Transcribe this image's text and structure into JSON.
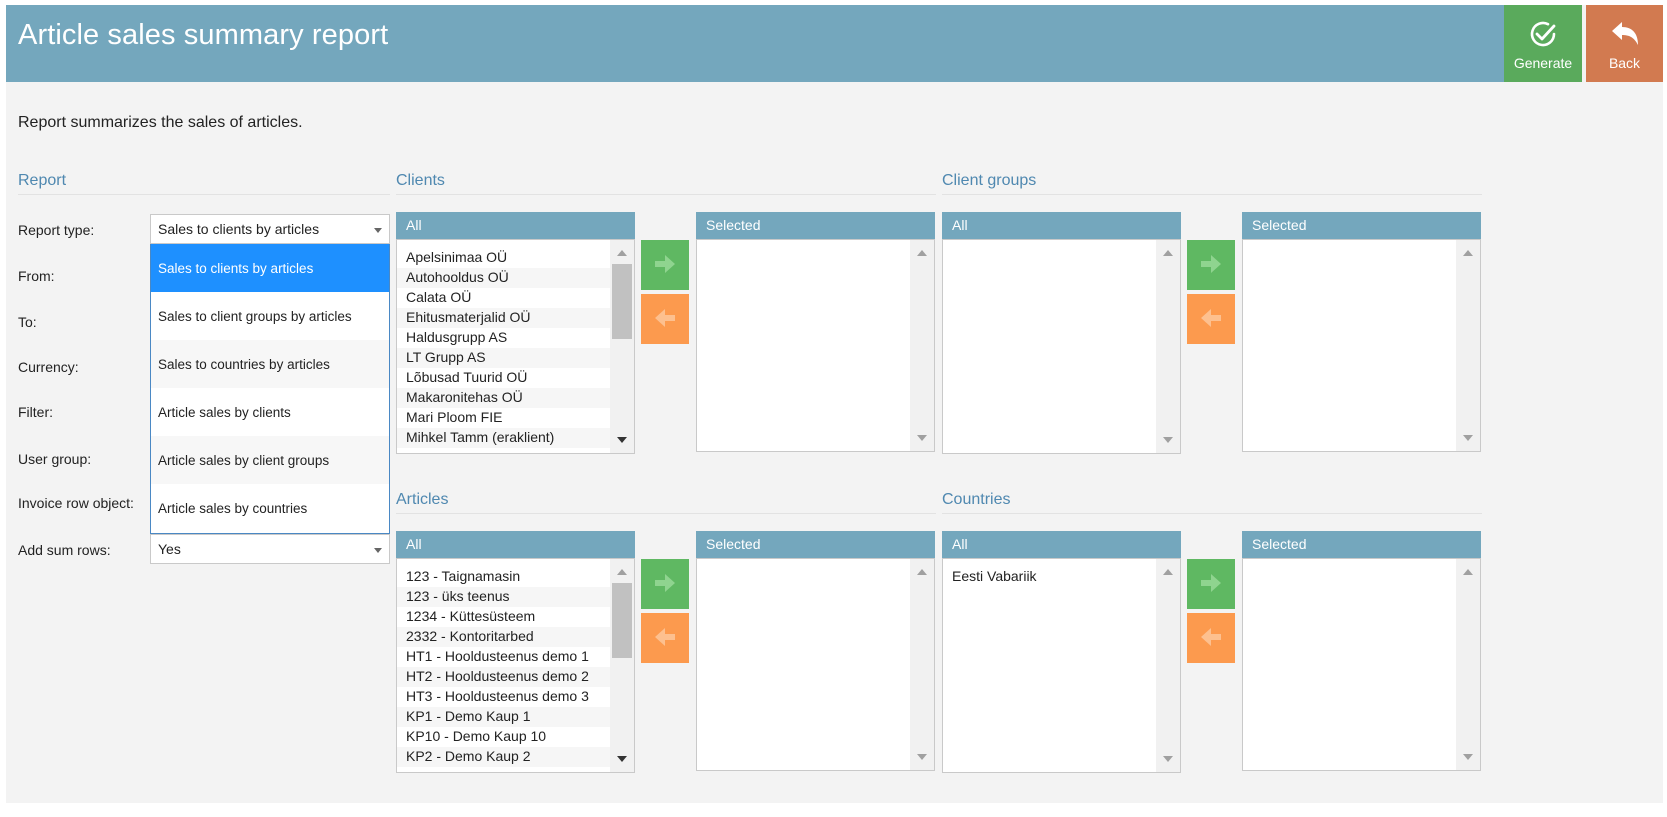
{
  "header": {
    "title": "Article sales summary report",
    "generate_label": "Generate",
    "back_label": "Back"
  },
  "description": "Report summarizes the sales of articles.",
  "colors": {
    "header": "#74a7bd",
    "generate": "#5aaa5c",
    "back": "#d27a50",
    "move_right": "#5fb862",
    "move_left": "#fc9a4e",
    "section_title": "#4f88b0",
    "dropdown_active": "#1e90ff"
  },
  "report": {
    "section_title": "Report",
    "labels": {
      "report_type": "Report type:",
      "from": "From:",
      "to": "To:",
      "currency": "Currency:",
      "filter": "Filter:",
      "user_group": "User group:",
      "invoice_row_object": "Invoice row object:",
      "add_sum_rows": "Add sum rows:"
    },
    "report_type_value": "Sales to clients by articles",
    "add_sum_rows_value": "Yes",
    "report_type_options": [
      "Sales to clients by articles",
      "Sales to client groups by articles",
      "Sales to countries by articles",
      "Article sales by clients",
      "Article sales by client groups",
      "Article sales by countries"
    ]
  },
  "clients": {
    "section_title": "Clients",
    "all_label": "All",
    "selected_label": "Selected",
    "items": [
      "Apelsinimaa OÜ",
      "Autohooldus OÜ",
      "Calata OÜ",
      "Ehitusmaterjalid OÜ",
      "Haldusgrupp AS",
      "LT Grupp AS",
      "Lõbusad Tuurid OÜ",
      "Makaronitehas OÜ",
      "Mari Ploom FIE",
      "Mihkel Tamm (eraklient)"
    ],
    "selected_items": []
  },
  "client_groups": {
    "section_title": "Client groups",
    "all_label": "All",
    "selected_label": "Selected",
    "items": [],
    "selected_items": []
  },
  "articles": {
    "section_title": "Articles",
    "all_label": "All",
    "selected_label": "Selected",
    "items": [
      "123 - Taignamasin",
      "123 - üks teenus",
      "1234 - Küttesüsteem",
      "2332 - Kontoritarbed",
      "HT1 - Hooldusteenus demo 1",
      "HT2 - Hooldusteenus demo 2",
      "HT3 - Hooldusteenus demo 3",
      "KP1 - Demo Kaup 1",
      "KP10 - Demo Kaup 10",
      "KP2 - Demo Kaup 2"
    ],
    "selected_items": []
  },
  "countries": {
    "section_title": "Countries",
    "all_label": "All",
    "selected_label": "Selected",
    "items": [
      "Eesti Vabariik"
    ],
    "selected_items": []
  },
  "icons": {
    "generate": "check-circle-icon",
    "back": "reply-arrow-icon",
    "move_right": "arrow-right-icon",
    "move_left": "arrow-left-icon"
  }
}
